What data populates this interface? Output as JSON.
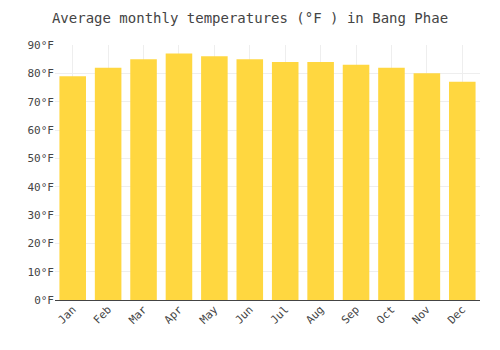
{
  "chart_data": {
    "type": "bar",
    "title": "Average monthly temperatures (°F ) in Bang Phae",
    "categories": [
      "Jan",
      "Feb",
      "Mar",
      "Apr",
      "May",
      "Jun",
      "Jul",
      "Aug",
      "Sep",
      "Oct",
      "Nov",
      "Dec"
    ],
    "values": [
      79,
      82,
      85,
      87,
      86,
      85,
      84,
      84,
      83,
      82,
      80,
      77
    ],
    "color": "#FFD740",
    "ylim": [
      0,
      90
    ],
    "yticks": [
      {
        "value": 0,
        "label": "0°F"
      },
      {
        "value": 10,
        "label": "10°F"
      },
      {
        "value": 20,
        "label": "20°F"
      },
      {
        "value": 30,
        "label": "30°F"
      },
      {
        "value": 40,
        "label": "40°F"
      },
      {
        "value": 50,
        "label": "50°F"
      },
      {
        "value": 60,
        "label": "60°F"
      },
      {
        "value": 70,
        "label": "70°F"
      },
      {
        "value": 80,
        "label": "80°F"
      },
      {
        "value": 90,
        "label": "90°F"
      }
    ],
    "grid": true
  }
}
